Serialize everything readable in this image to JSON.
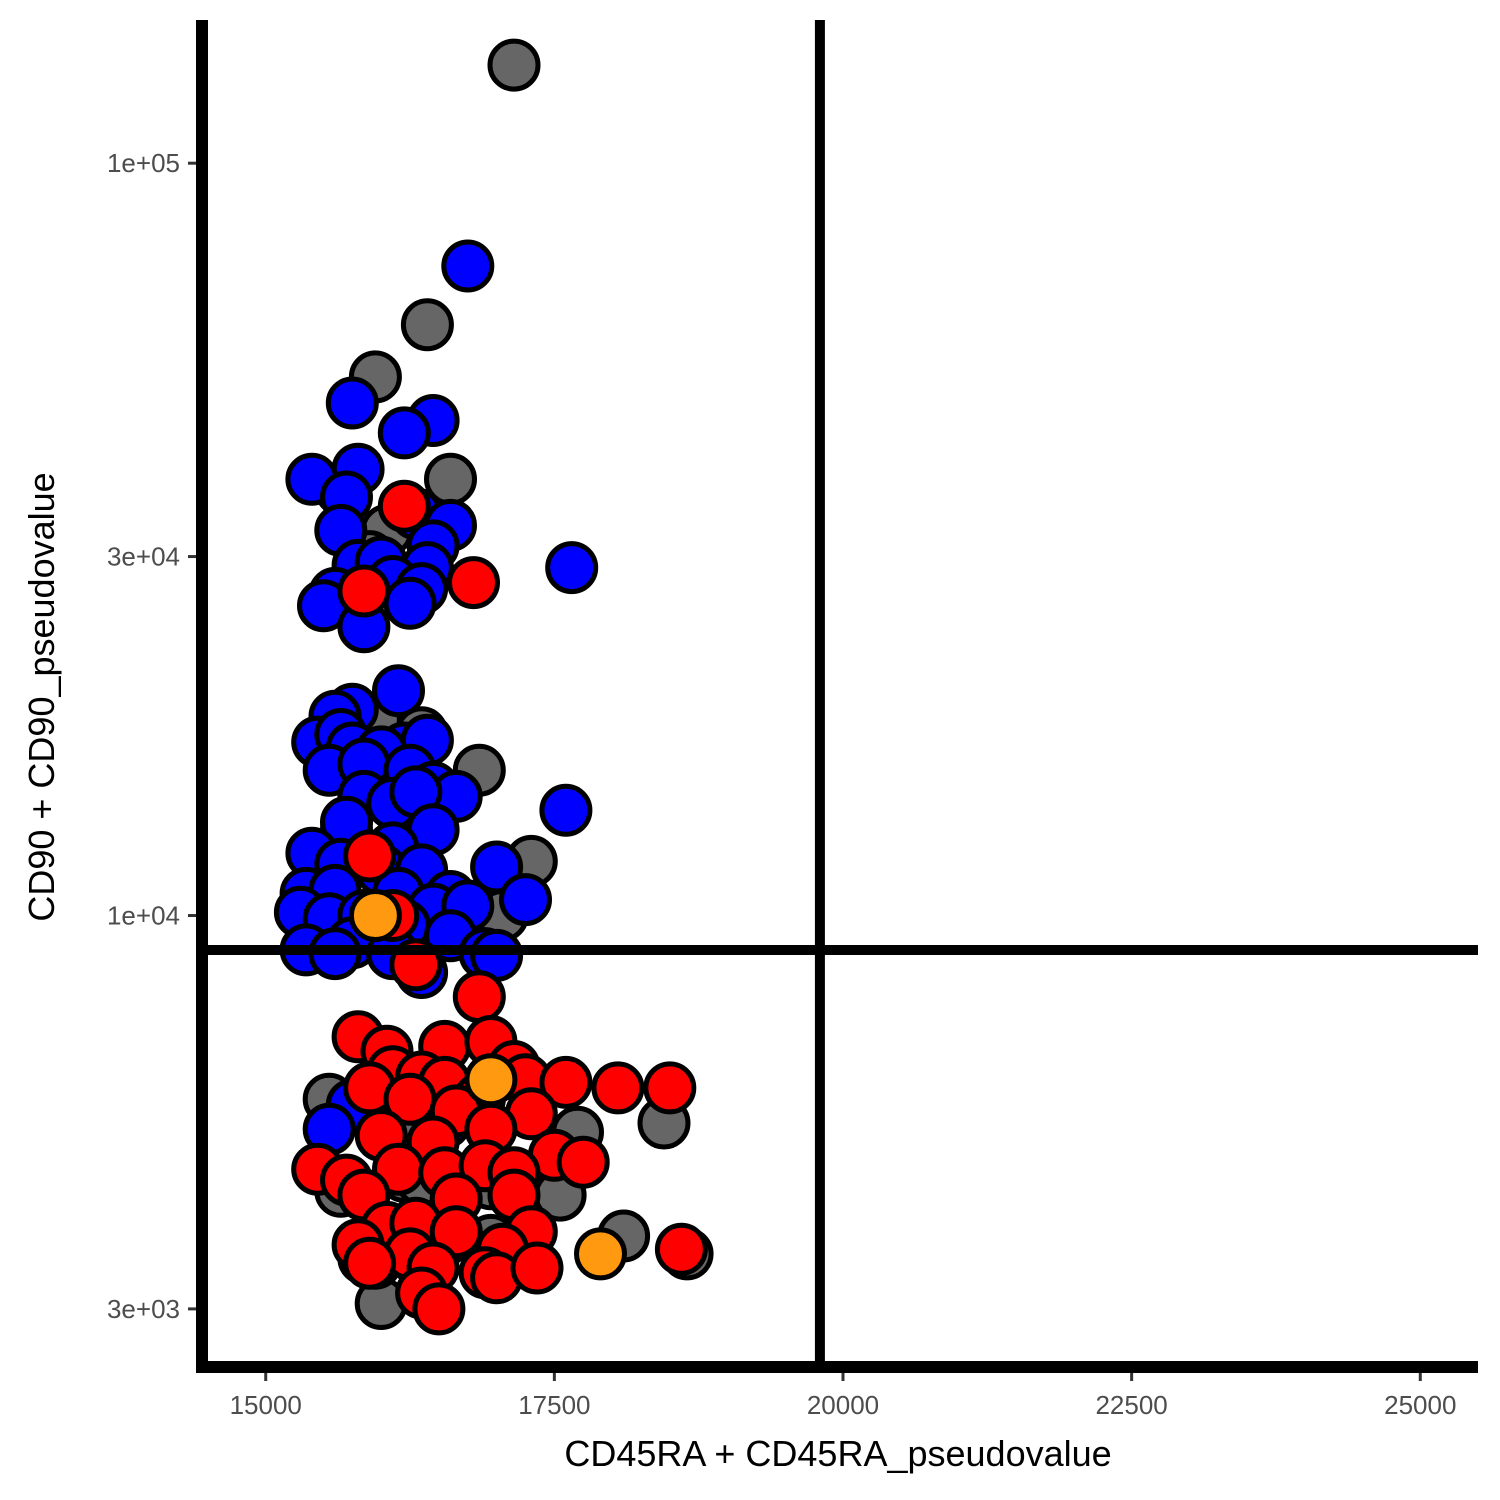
{
  "chart_data": {
    "type": "scatter",
    "xlabel": "CD45RA + CD45RA_pseudovalue",
    "ylabel": "CD90 + CD90_pseudovalue",
    "x_scale": "linear",
    "y_scale": "log10",
    "xlim": [
      14500,
      25500
    ],
    "ylim": [
      2550,
      155000
    ],
    "x_ticks": [
      15000,
      17500,
      20000,
      22500,
      25000
    ],
    "x_tick_labels": [
      "15000",
      "17500",
      "20000",
      "22500",
      "25000"
    ],
    "y_ticks": [
      3000,
      10000,
      30000,
      100000
    ],
    "y_tick_labels": [
      "3e+03",
      "1e+04",
      "3e+04",
      "1e+05"
    ],
    "grid": false,
    "legend": "none",
    "thresholds": {
      "vertical_x": 19800,
      "horizontal_y": 9000
    },
    "colors": {
      "gray": "#666666",
      "blue": "#0000ff",
      "red": "#ff0000",
      "orange": "#ff9910",
      "outline": "#000000"
    },
    "series": [
      {
        "color": "gray",
        "points": [
          [
            17150,
            135000
          ],
          [
            16400,
            61000
          ],
          [
            15950,
            52000
          ],
          [
            16600,
            38000
          ],
          [
            15650,
            36800
          ],
          [
            16050,
            32500
          ],
          [
            15900,
            30000
          ],
          [
            16350,
            17500
          ],
          [
            15950,
            18200
          ],
          [
            16850,
            15600
          ],
          [
            15700,
            13000
          ],
          [
            17300,
            11800
          ],
          [
            17050,
            10000
          ],
          [
            15400,
            9100
          ],
          [
            15550,
            5700
          ],
          [
            16000,
            5550
          ],
          [
            16200,
            5200
          ],
          [
            16250,
            5000
          ],
          [
            17700,
            5150
          ],
          [
            18450,
            5300
          ],
          [
            16200,
            4500
          ],
          [
            15650,
            4300
          ],
          [
            16500,
            4300
          ],
          [
            16950,
            4400
          ],
          [
            17550,
            4250
          ],
          [
            16350,
            4450
          ],
          [
            18100,
            3750
          ],
          [
            16950,
            3700
          ],
          [
            15850,
            3500
          ],
          [
            16300,
            3500
          ],
          [
            18650,
            3550
          ],
          [
            16000,
            3050
          ],
          [
            16550,
            3700
          ],
          [
            15950,
            3450
          ]
        ]
      },
      {
        "color": "blue",
        "points": [
          [
            16750,
            73000
          ],
          [
            15750,
            48000
          ],
          [
            16450,
            45500
          ],
          [
            16200,
            43800
          ],
          [
            15800,
            39200
          ],
          [
            15400,
            38000
          ],
          [
            15700,
            36000
          ],
          [
            16300,
            34200
          ],
          [
            16600,
            33000
          ],
          [
            15650,
            32500
          ],
          [
            16450,
            31000
          ],
          [
            17650,
            29000
          ],
          [
            15800,
            29200
          ],
          [
            16000,
            29500
          ],
          [
            16400,
            29000
          ],
          [
            16100,
            27800
          ],
          [
            16350,
            27200
          ],
          [
            15600,
            26800
          ],
          [
            15500,
            25800
          ],
          [
            16250,
            26000
          ],
          [
            15850,
            24200
          ],
          [
            16150,
            19900
          ],
          [
            15750,
            18800
          ],
          [
            15600,
            18400
          ],
          [
            15450,
            17000
          ],
          [
            15650,
            17400
          ],
          [
            16200,
            16700
          ],
          [
            15750,
            16700
          ],
          [
            16000,
            16500
          ],
          [
            16400,
            17100
          ],
          [
            15550,
            15600
          ],
          [
            15850,
            15900
          ],
          [
            16250,
            15600
          ],
          [
            16450,
            14800
          ],
          [
            16650,
            14400
          ],
          [
            15850,
            14400
          ],
          [
            16100,
            14100
          ],
          [
            16300,
            14600
          ],
          [
            17600,
            13800
          ],
          [
            15700,
            13300
          ],
          [
            16450,
            13000
          ],
          [
            16100,
            12300
          ],
          [
            15400,
            12100
          ],
          [
            15650,
            11700
          ],
          [
            16000,
            11500
          ],
          [
            16350,
            11500
          ],
          [
            17000,
            11600
          ],
          [
            15350,
            10700
          ],
          [
            15600,
            10800
          ],
          [
            16150,
            10700
          ],
          [
            16600,
            10600
          ],
          [
            17250,
            10500
          ],
          [
            15300,
            10100
          ],
          [
            15550,
            9900
          ],
          [
            15850,
            10000
          ],
          [
            16450,
            10200
          ],
          [
            16750,
            10300
          ],
          [
            16200,
            9700
          ],
          [
            16600,
            9400
          ],
          [
            15750,
            9200
          ],
          [
            15350,
            9000
          ],
          [
            16100,
            8900
          ],
          [
            16900,
            8900
          ],
          [
            15600,
            8900
          ],
          [
            17000,
            8850
          ],
          [
            16350,
            8400
          ],
          [
            15750,
            5600
          ],
          [
            16550,
            5300
          ],
          [
            15550,
            5200
          ]
        ]
      },
      {
        "color": "red",
        "points": [
          [
            16200,
            35000
          ],
          [
            15850,
            27000
          ],
          [
            16800,
            27700
          ],
          [
            15900,
            12000
          ],
          [
            16100,
            10000
          ],
          [
            16300,
            8600
          ],
          [
            16850,
            7800
          ],
          [
            15800,
            6900
          ],
          [
            16050,
            6600
          ],
          [
            16550,
            6700
          ],
          [
            16950,
            6800
          ],
          [
            16100,
            6200
          ],
          [
            16350,
            6100
          ],
          [
            17150,
            6300
          ],
          [
            15900,
            5900
          ],
          [
            16550,
            6000
          ],
          [
            16850,
            5700
          ],
          [
            17250,
            6050
          ],
          [
            17600,
            6000
          ],
          [
            18050,
            5900
          ],
          [
            18500,
            5900
          ],
          [
            16250,
            5700
          ],
          [
            16650,
            5500
          ],
          [
            17300,
            5450
          ],
          [
            16000,
            5100
          ],
          [
            16450,
            5000
          ],
          [
            16950,
            5200
          ],
          [
            17500,
            4800
          ],
          [
            17750,
            4700
          ],
          [
            15450,
            4600
          ],
          [
            15700,
            4450
          ],
          [
            16150,
            4600
          ],
          [
            16550,
            4550
          ],
          [
            16900,
            4650
          ],
          [
            17150,
            4550
          ],
          [
            15850,
            4250
          ],
          [
            16650,
            4200
          ],
          [
            17150,
            4250
          ],
          [
            16050,
            3850
          ],
          [
            16300,
            3900
          ],
          [
            16650,
            3800
          ],
          [
            17300,
            3800
          ],
          [
            15800,
            3650
          ],
          [
            16250,
            3550
          ],
          [
            17050,
            3600
          ],
          [
            15900,
            3450
          ],
          [
            16450,
            3400
          ],
          [
            16900,
            3350
          ],
          [
            16350,
            3150
          ],
          [
            16500,
            3000
          ],
          [
            17000,
            3300
          ],
          [
            17350,
            3400
          ],
          [
            18600,
            3600
          ]
        ]
      },
      {
        "color": "orange",
        "points": [
          [
            15950,
            10000
          ],
          [
            16950,
            6050
          ],
          [
            17900,
            3550
          ]
        ]
      }
    ]
  }
}
